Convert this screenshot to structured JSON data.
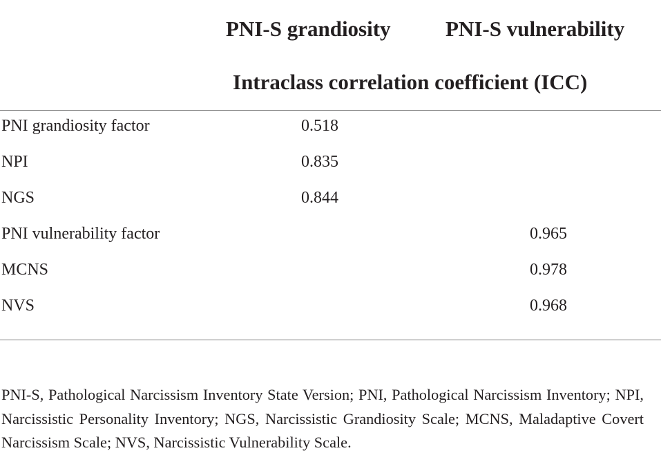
{
  "table": {
    "columns": [
      "PNI-S grandiosity",
      "PNI-S vulnerability"
    ],
    "subheader": "Intraclass correlation coefficient (ICC)",
    "rows": [
      {
        "label": "PNI grandiosity factor",
        "grandiosity": "0.518",
        "vulnerability": ""
      },
      {
        "label": "NPI",
        "grandiosity": "0.835",
        "vulnerability": ""
      },
      {
        "label": "NGS",
        "grandiosity": "0.844",
        "vulnerability": ""
      },
      {
        "label": "PNI vulnerability factor",
        "grandiosity": "",
        "vulnerability": "0.965"
      },
      {
        "label": "MCNS",
        "grandiosity": "",
        "vulnerability": "0.978"
      },
      {
        "label": "NVS",
        "grandiosity": "",
        "vulnerability": "0.968"
      }
    ]
  },
  "footnote": "PNI-S, Pathological Narcissism Inventory State Version; PNI, Pathological Narcissism Inventory; NPI, Narcissistic Personality Inventory; NGS, Narcissistic Grandiosity Scale; MCNS, Maladaptive Covert Narcissism Scale; NVS, Narcissistic Vulnerability Scale."
}
